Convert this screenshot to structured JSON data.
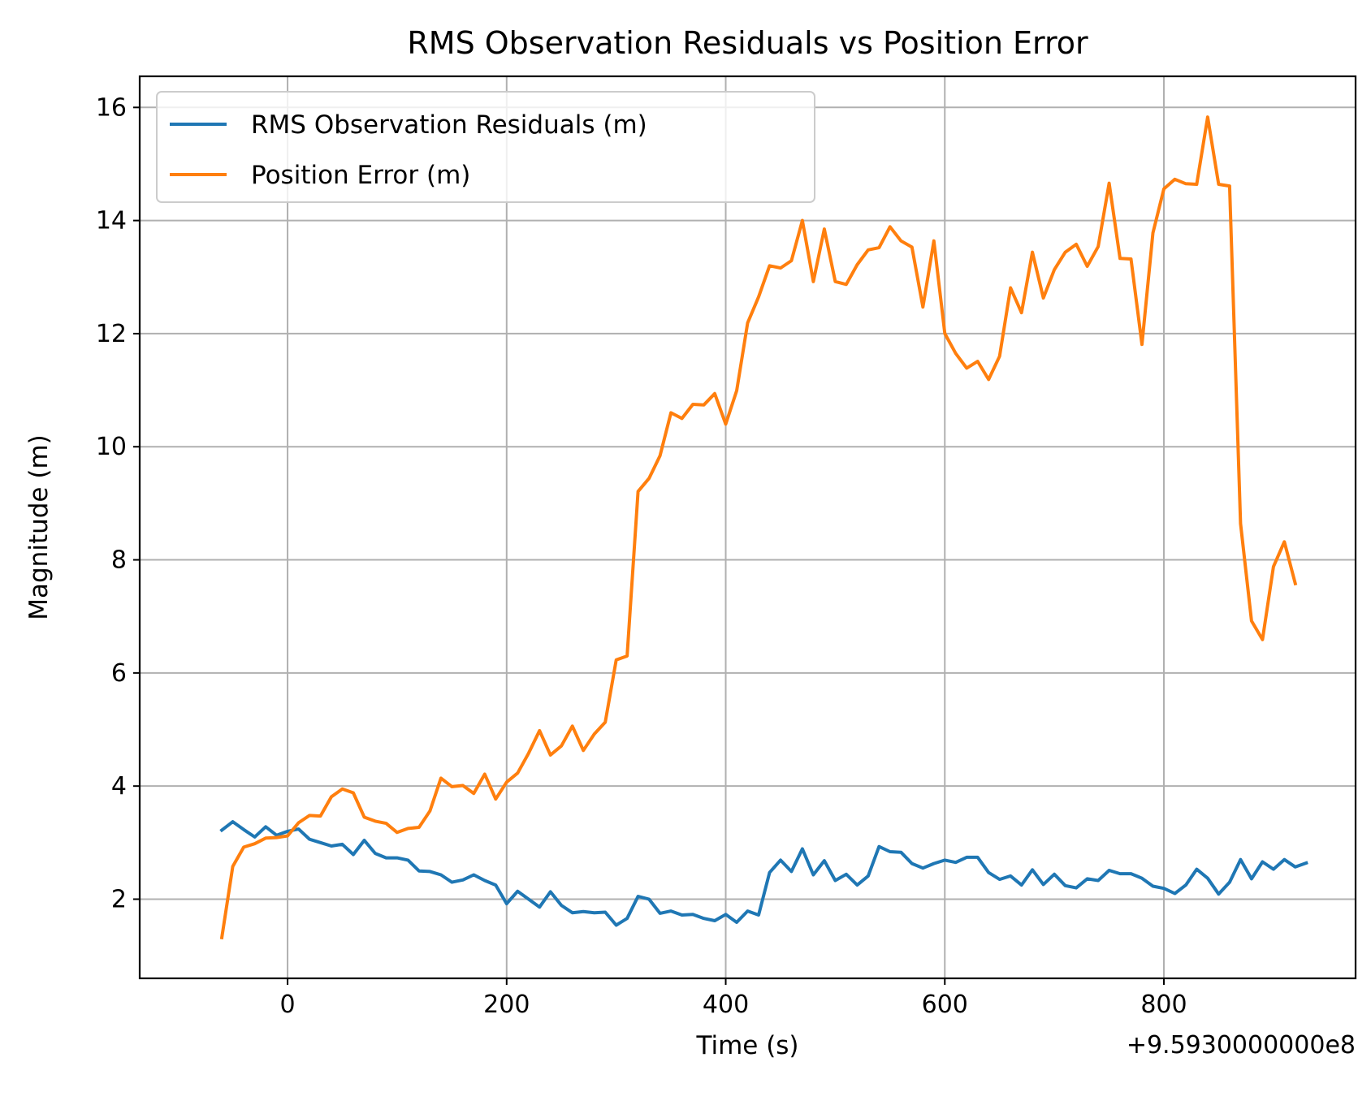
{
  "chart_data": {
    "type": "line",
    "title": "RMS Observation Residuals vs Position Error",
    "xlabel": "Time (s)",
    "ylabel": "Magnitude (m)",
    "x_offset_label": "+9.5930000000e8",
    "xlim": [
      -135,
      975
    ],
    "ylim": [
      0.6,
      16.55
    ],
    "x_ticks": [
      0,
      200,
      400,
      600,
      800
    ],
    "y_ticks": [
      2,
      4,
      6,
      8,
      10,
      12,
      14,
      16
    ],
    "grid": true,
    "legend_position": "upper-left",
    "series": [
      {
        "name": "RMS Observation Residuals (m)",
        "color": "#1f77b4",
        "x": [
          -60,
          -50,
          -40,
          -30,
          -20,
          -10,
          0,
          10,
          20,
          30,
          40,
          50,
          60,
          70,
          80,
          90,
          100,
          110,
          120,
          130,
          140,
          150,
          160,
          170,
          180,
          190,
          200,
          210,
          220,
          230,
          240,
          250,
          260,
          270,
          280,
          290,
          300,
          310,
          320,
          330,
          340,
          350,
          360,
          370,
          380,
          390,
          400,
          410,
          420,
          430,
          440,
          450,
          460,
          470,
          480,
          490,
          500,
          510,
          520,
          530,
          540,
          550,
          560,
          570,
          580,
          590,
          600,
          610,
          620,
          630,
          640,
          650,
          660,
          670,
          680,
          690,
          700,
          710,
          720,
          730,
          740,
          750,
          760,
          770,
          780,
          790,
          800,
          810,
          820,
          830,
          840,
          850,
          860,
          870,
          880,
          890,
          900,
          910,
          920,
          930
        ],
        "y": [
          3.22,
          3.37,
          3.23,
          3.1,
          3.28,
          3.13,
          3.2,
          3.24,
          3.06,
          3.0,
          2.94,
          2.97,
          2.79,
          3.04,
          2.81,
          2.73,
          2.73,
          2.69,
          2.5,
          2.49,
          2.43,
          2.3,
          2.34,
          2.43,
          2.33,
          2.25,
          1.92,
          2.14,
          2.0,
          1.86,
          2.13,
          1.89,
          1.76,
          1.78,
          1.76,
          1.77,
          1.54,
          1.66,
          2.05,
          2.0,
          1.75,
          1.79,
          1.72,
          1.73,
          1.66,
          1.62,
          1.73,
          1.59,
          1.79,
          1.72,
          2.47,
          2.69,
          2.49,
          2.89,
          2.43,
          2.68,
          2.33,
          2.44,
          2.25,
          2.41,
          2.93,
          2.84,
          2.83,
          2.63,
          2.55,
          2.63,
          2.69,
          2.65,
          2.74,
          2.74,
          2.47,
          2.35,
          2.41,
          2.25,
          2.52,
          2.26,
          2.44,
          2.24,
          2.2,
          2.36,
          2.33,
          2.51,
          2.45,
          2.45,
          2.37,
          2.23,
          2.19,
          2.1,
          2.25,
          2.53,
          2.37,
          2.09,
          2.3,
          2.7,
          2.36,
          2.66,
          2.53,
          2.7,
          2.57,
          2.64
        ]
      },
      {
        "name": "Position Error (m)",
        "color": "#ff7f0e",
        "x": [
          -60,
          -50,
          -40,
          -30,
          -20,
          -10,
          0,
          10,
          20,
          30,
          40,
          50,
          60,
          70,
          80,
          90,
          100,
          110,
          120,
          130,
          140,
          150,
          160,
          170,
          180,
          190,
          200,
          210,
          220,
          230,
          240,
          250,
          260,
          270,
          280,
          290,
          300,
          310,
          320,
          330,
          340,
          350,
          360,
          370,
          380,
          390,
          400,
          410,
          420,
          430,
          440,
          450,
          460,
          470,
          480,
          490,
          500,
          510,
          520,
          530,
          540,
          550,
          560,
          570,
          580,
          590,
          600,
          610,
          620,
          630,
          640,
          650,
          660,
          670,
          680,
          690,
          700,
          710,
          720,
          730,
          740,
          750,
          760,
          770,
          780,
          790,
          800,
          810,
          820,
          830,
          840,
          850,
          860,
          870,
          880,
          890,
          900,
          910,
          920
        ],
        "y": [
          1.32,
          2.58,
          2.92,
          2.98,
          3.08,
          3.09,
          3.12,
          3.35,
          3.48,
          3.47,
          3.81,
          3.95,
          3.88,
          3.45,
          3.38,
          3.34,
          3.18,
          3.25,
          3.27,
          3.56,
          4.14,
          3.99,
          4.01,
          3.87,
          4.21,
          3.77,
          4.07,
          4.23,
          4.58,
          4.98,
          4.55,
          4.71,
          5.06,
          4.63,
          4.92,
          5.13,
          6.23,
          6.3,
          9.21,
          9.44,
          9.84,
          10.6,
          10.5,
          10.75,
          10.74,
          10.94,
          10.4,
          10.99,
          12.19,
          12.65,
          13.2,
          13.16,
          13.29,
          14.0,
          12.92,
          13.85,
          12.92,
          12.87,
          13.22,
          13.48,
          13.52,
          13.89,
          13.64,
          13.53,
          12.47,
          13.64,
          12.0,
          11.65,
          11.39,
          11.51,
          11.19,
          11.6,
          12.81,
          12.37,
          13.44,
          12.63,
          13.13,
          13.44,
          13.58,
          13.19,
          13.54,
          14.66,
          13.33,
          13.32,
          11.81,
          13.78,
          14.56,
          14.73,
          14.65,
          14.64,
          15.83,
          14.64,
          14.61,
          8.64,
          6.92,
          6.59,
          7.88,
          8.32,
          7.58
        ]
      }
    ]
  }
}
